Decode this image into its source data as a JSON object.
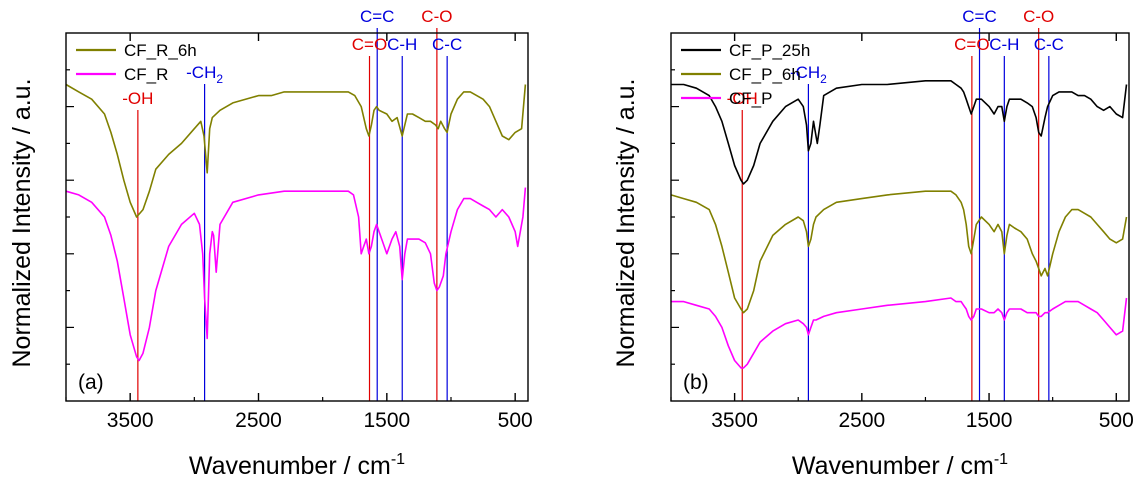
{
  "chart_data": [
    {
      "type": "line",
      "panel_label": "(a)",
      "xlabel": "Wavenumber / cm",
      "xlabel_sup": "-1",
      "ylabel": "Normalized Intensity / a.u.",
      "xlim": [
        4000,
        400
      ],
      "x_reversed": true,
      "ylim": [
        0,
        100
      ],
      "xticks": [
        3500,
        2500,
        1500,
        500
      ],
      "xtick_labels": [
        "3500",
        "2500",
        "1500",
        "500"
      ],
      "grid": false,
      "legend_position": "top-left",
      "series": [
        {
          "name": "CF_R_6h",
          "color": "#808000",
          "x": [
            4000,
            3900,
            3800,
            3700,
            3650,
            3600,
            3550,
            3500,
            3450,
            3400,
            3350,
            3300,
            3200,
            3100,
            3000,
            2950,
            2925,
            2900,
            2880,
            2860,
            2800,
            2700,
            2500,
            2400,
            2300,
            2200,
            2000,
            1800,
            1750,
            1700,
            1660,
            1640,
            1620,
            1600,
            1580,
            1560,
            1500,
            1460,
            1420,
            1380,
            1340,
            1300,
            1250,
            1200,
            1160,
            1120,
            1100,
            1080,
            1050,
            1030,
            1000,
            950,
            900,
            850,
            800,
            750,
            700,
            650,
            600,
            550,
            500,
            450,
            420
          ],
          "y": [
            86,
            84,
            82,
            78,
            73,
            67,
            60,
            54,
            50,
            52,
            57,
            63,
            67,
            70,
            74,
            76,
            72,
            62,
            74,
            77,
            79,
            81,
            83,
            83,
            84,
            84,
            84,
            84,
            83,
            80,
            74,
            72,
            75,
            79,
            80,
            79,
            78,
            76,
            77,
            72,
            78,
            78,
            77,
            76,
            76,
            75,
            74,
            76,
            74,
            73,
            78,
            82,
            84,
            84,
            83,
            82,
            80,
            76,
            72,
            71,
            73,
            74,
            86
          ]
        },
        {
          "name": "CF_R",
          "color": "#ff00ff",
          "x": [
            4000,
            3900,
            3800,
            3700,
            3650,
            3600,
            3550,
            3500,
            3450,
            3430,
            3400,
            3350,
            3300,
            3200,
            3100,
            3000,
            2960,
            2935,
            2920,
            2900,
            2880,
            2860,
            2850,
            2830,
            2800,
            2700,
            2500,
            2300,
            2000,
            1800,
            1760,
            1720,
            1700,
            1680,
            1660,
            1640,
            1620,
            1600,
            1580,
            1560,
            1540,
            1500,
            1460,
            1430,
            1400,
            1380,
            1360,
            1340,
            1300,
            1250,
            1200,
            1160,
            1130,
            1110,
            1090,
            1060,
            1040,
            1000,
            950,
            900,
            850,
            800,
            750,
            700,
            650,
            600,
            550,
            500,
            480,
            440,
            420
          ],
          "y": [
            57,
            56,
            54,
            50,
            45,
            38,
            28,
            18,
            12,
            11,
            13,
            20,
            30,
            42,
            48,
            51,
            48,
            40,
            28,
            17,
            40,
            46,
            45,
            35,
            48,
            54,
            56,
            57,
            57,
            57,
            56,
            50,
            40,
            42,
            44,
            40,
            42,
            46,
            48,
            46,
            44,
            40,
            44,
            46,
            42,
            33,
            40,
            44,
            44,
            44,
            43,
            40,
            32,
            30,
            31,
            34,
            40,
            46,
            52,
            55,
            55,
            54,
            53,
            52,
            50,
            52,
            50,
            46,
            42,
            50,
            58
          ]
        }
      ],
      "annotations": [
        {
          "label": "-OH",
          "x": 3440,
          "color": "#e00000"
        },
        {
          "label": "-CH",
          "sub": "2",
          "x": 2920,
          "color": "#0000dd"
        },
        {
          "label": "C=O",
          "x": 1635,
          "color": "#e00000"
        },
        {
          "label": "C=C",
          "x": 1575,
          "color": "#0000dd"
        },
        {
          "label": "C-H",
          "x": 1380,
          "color": "#0000dd"
        },
        {
          "label": "C-O",
          "x": 1110,
          "color": "#e00000"
        },
        {
          "label": "C-C",
          "x": 1030,
          "color": "#0000dd"
        }
      ]
    },
    {
      "type": "line",
      "panel_label": "(b)",
      "xlabel": "Wavenumber / cm",
      "xlabel_sup": "-1",
      "ylabel": "Normalized Intensity / a.u.",
      "xlim": [
        4000,
        400
      ],
      "x_reversed": true,
      "ylim": [
        0,
        100
      ],
      "xticks": [
        3500,
        2500,
        1500,
        500
      ],
      "xtick_labels": [
        "3500",
        "2500",
        "1500",
        "500"
      ],
      "grid": false,
      "legend_position": "top-left",
      "series": [
        {
          "name": "CF_P_25h",
          "color": "#000000",
          "x": [
            4000,
            3900,
            3800,
            3700,
            3650,
            3600,
            3550,
            3500,
            3450,
            3430,
            3400,
            3350,
            3300,
            3200,
            3100,
            3000,
            2960,
            2935,
            2920,
            2900,
            2880,
            2860,
            2850,
            2830,
            2800,
            2700,
            2500,
            2300,
            2000,
            1800,
            1760,
            1720,
            1700,
            1680,
            1660,
            1640,
            1620,
            1600,
            1560,
            1500,
            1460,
            1430,
            1400,
            1380,
            1360,
            1340,
            1300,
            1250,
            1200,
            1160,
            1130,
            1110,
            1090,
            1060,
            1040,
            1000,
            950,
            900,
            850,
            800,
            750,
            700,
            650,
            600,
            550,
            500,
            450,
            420
          ],
          "y": [
            86,
            86,
            85,
            83,
            80,
            76,
            70,
            64,
            60,
            59,
            60,
            64,
            70,
            76,
            80,
            82,
            80,
            75,
            68,
            70,
            76,
            72,
            70,
            75,
            83,
            85,
            86,
            86,
            87,
            87,
            86,
            85,
            84,
            82,
            80,
            78,
            80,
            82,
            82,
            80,
            78,
            80,
            80,
            76,
            80,
            82,
            82,
            82,
            81,
            80,
            77,
            73,
            72,
            77,
            80,
            83,
            84,
            84,
            84,
            83,
            83,
            82,
            80,
            79,
            80,
            78,
            77,
            86
          ]
        },
        {
          "name": "CF_P_6h",
          "color": "#808000",
          "x": [
            4000,
            3900,
            3800,
            3700,
            3650,
            3600,
            3550,
            3500,
            3450,
            3430,
            3400,
            3350,
            3300,
            3200,
            3100,
            3000,
            2960,
            2935,
            2920,
            2900,
            2880,
            2860,
            2800,
            2700,
            2500,
            2300,
            2000,
            1800,
            1760,
            1720,
            1700,
            1680,
            1660,
            1640,
            1620,
            1600,
            1560,
            1500,
            1460,
            1430,
            1400,
            1380,
            1360,
            1340,
            1300,
            1250,
            1200,
            1160,
            1130,
            1110,
            1090,
            1060,
            1040,
            1000,
            950,
            900,
            850,
            800,
            750,
            700,
            650,
            600,
            550,
            500,
            450,
            420
          ],
          "y": [
            56,
            55,
            54,
            52,
            48,
            42,
            35,
            28,
            25,
            24,
            25,
            30,
            38,
            45,
            48,
            50,
            49,
            46,
            42,
            44,
            48,
            50,
            52,
            54,
            55,
            56,
            57,
            57,
            56,
            54,
            52,
            48,
            42,
            40,
            44,
            48,
            50,
            48,
            46,
            48,
            46,
            40,
            45,
            48,
            47,
            46,
            44,
            40,
            38,
            36,
            34,
            36,
            34,
            40,
            46,
            50,
            52,
            52,
            51,
            50,
            48,
            46,
            44,
            43,
            44,
            50
          ]
        },
        {
          "name": "CF_P",
          "color": "#ff00ff",
          "x": [
            4000,
            3900,
            3800,
            3700,
            3650,
            3600,
            3550,
            3500,
            3450,
            3430,
            3400,
            3350,
            3300,
            3200,
            3100,
            3000,
            2960,
            2935,
            2920,
            2900,
            2880,
            2860,
            2800,
            2700,
            2500,
            2300,
            2000,
            1800,
            1760,
            1720,
            1700,
            1680,
            1660,
            1640,
            1620,
            1600,
            1560,
            1500,
            1460,
            1430,
            1400,
            1380,
            1360,
            1340,
            1300,
            1250,
            1200,
            1160,
            1130,
            1110,
            1090,
            1060,
            1040,
            1000,
            950,
            900,
            850,
            800,
            750,
            700,
            650,
            600,
            550,
            500,
            450,
            420
          ],
          "y": [
            27,
            27,
            26,
            25,
            23,
            20,
            15,
            11,
            9,
            9,
            10,
            13,
            16,
            19,
            21,
            22,
            21,
            20,
            18,
            20,
            22,
            22,
            23,
            24,
            25,
            26,
            27,
            28,
            27,
            27,
            26,
            25,
            23,
            22,
            23,
            25,
            25,
            24,
            24,
            25,
            24,
            22,
            24,
            25,
            25,
            25,
            24,
            24,
            24,
            23,
            23,
            24,
            24,
            25,
            26,
            27,
            27,
            27,
            26,
            25,
            24,
            22,
            20,
            18,
            19,
            28
          ]
        }
      ],
      "annotations": [
        {
          "label": "-OH",
          "x": 3440,
          "color": "#e00000"
        },
        {
          "label": "-CH",
          "sub": "2",
          "x": 2920,
          "color": "#0000dd"
        },
        {
          "label": "C=O",
          "x": 1635,
          "color": "#e00000"
        },
        {
          "label": "C=C",
          "x": 1575,
          "color": "#0000dd"
        },
        {
          "label": "C-H",
          "x": 1380,
          "color": "#0000dd"
        },
        {
          "label": "C-O",
          "x": 1110,
          "color": "#e00000"
        },
        {
          "label": "C-C",
          "x": 1030,
          "color": "#0000dd"
        }
      ]
    }
  ]
}
